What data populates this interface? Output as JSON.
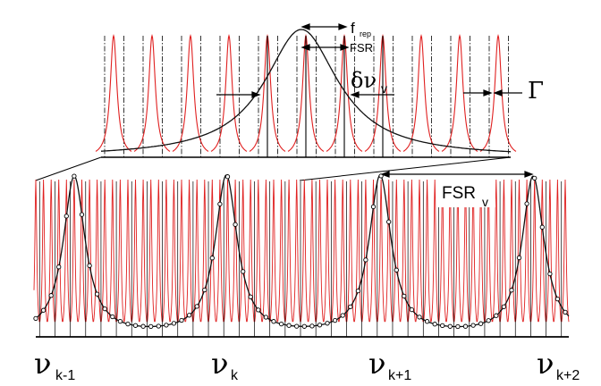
{
  "diagram": {
    "labels": {
      "f_rep": "f",
      "f_rep_sub": "rep",
      "fsr_top": "FSR",
      "delta_nu": "δν",
      "delta_nu_sub": "v",
      "gamma": "Γ",
      "fsr_bottom": "FSR",
      "fsr_bottom_sub": "v"
    },
    "nu_labels": [
      {
        "symbol": "ν",
        "sub": "k-1"
      },
      {
        "symbol": "ν",
        "sub": "k"
      },
      {
        "symbol": "ν",
        "sub": "k+1"
      },
      {
        "symbol": "ν",
        "sub": "k+2"
      }
    ],
    "colors": {
      "comb": "#e02020",
      "envelope": "#111111",
      "axis": "#000000"
    }
  }
}
